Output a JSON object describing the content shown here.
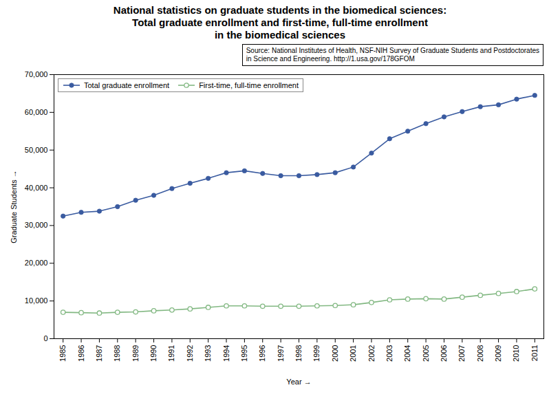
{
  "chart_data": {
    "type": "line",
    "title": "National statistics on graduate students in the biomedical sciences:\nTotal graduate enrollment and first-time, full-time enrollment\nin the biomedical sciences",
    "x_label": "Year",
    "y_label": "Graduate Students",
    "annotations": [
      "Source: National Institutes of Health, NSF-NIH  Survey of Graduate Students and Postdoctorates\nin Science and Engineering.  http://1.usa.gov/178GFOM"
    ],
    "x": [
      1985,
      1986,
      1987,
      1988,
      1989,
      1990,
      1991,
      1992,
      1993,
      1994,
      1995,
      1996,
      1997,
      1998,
      1999,
      2000,
      2001,
      2002,
      2003,
      2004,
      2005,
      2006,
      2007,
      2008,
      2009,
      2010,
      2011
    ],
    "series": [
      {
        "name": "Total graduate enrollment",
        "color": "#3A5BA0",
        "marker": "circle",
        "values": [
          32500,
          33500,
          33800,
          35000,
          36700,
          38000,
          39800,
          41200,
          42500,
          44000,
          44500,
          43800,
          43200,
          43200,
          43500,
          44000,
          45500,
          49200,
          53000,
          55000,
          57000,
          58800,
          60200,
          61500,
          62000,
          63500,
          64500
        ]
      },
      {
        "name": "First-time, full-time enrollment",
        "color": "#82B882",
        "marker": "open_circle",
        "values": [
          7000,
          6900,
          6800,
          7000,
          7100,
          7400,
          7600,
          7900,
          8300,
          8700,
          8700,
          8600,
          8600,
          8600,
          8700,
          8800,
          9000,
          9600,
          10300,
          10500,
          10600,
          10500,
          11000,
          11500,
          12000,
          12500,
          13200
        ]
      }
    ],
    "xlim": [
      1984.5,
      2011.5
    ],
    "xticks": [
      1985,
      1986,
      1987,
      1988,
      1989,
      1990,
      1991,
      1992,
      1993,
      1994,
      1995,
      1996,
      1997,
      1998,
      1999,
      2000,
      2001,
      2002,
      2003,
      2004,
      2005,
      2006,
      2007,
      2008,
      2009,
      2010,
      2011
    ],
    "ylim": [
      0,
      70000
    ],
    "yticks": [
      0,
      {
        "value": 10000,
        "label": "10,000"
      },
      {
        "value": 20000,
        "label": "20,000"
      },
      {
        "value": 30000,
        "label": "30,000"
      },
      {
        "value": 40000,
        "label": "40,000"
      },
      {
        "value": 50000,
        "label": "50,000"
      },
      {
        "value": 60000,
        "label": "60,000"
      },
      {
        "value": 70000,
        "label": "70,000"
      }
    ],
    "grid": false,
    "legend": "upper left"
  }
}
